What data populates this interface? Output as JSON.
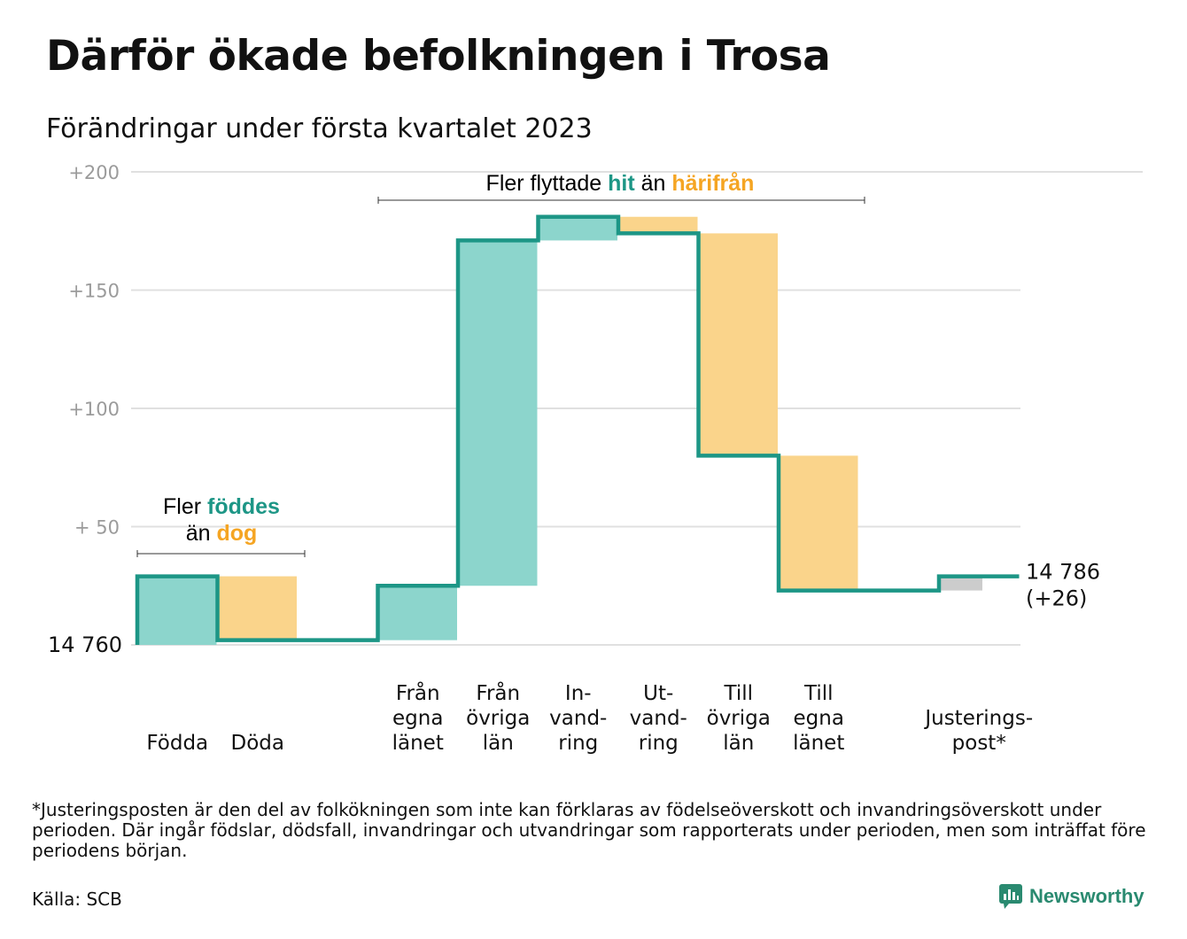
{
  "title": "Därför ökade befolkningen i Trosa",
  "subtitle": "Förändringar under första kvartalet 2023",
  "footnote": "*Justeringsposten är den del av folkökningen som inte kan förklaras av födelseöverskott och invandringsöverskott under perioden. Där ingår födslar, dödsfall, invandringar och utvandringar som rapporterats under perioden, men som inträffat före periodens början.",
  "source": "Källa: SCB",
  "brand": "Newsworthy",
  "colors": {
    "increase": "#8cd5cc",
    "decrease": "#fad48b",
    "adjustment": "#cccccc",
    "line": "#1d9686",
    "highlight_teal": "#1d9686",
    "highlight_orange": "#f5a523",
    "grid": "#e0e0e0",
    "tick": "#9b9b9b"
  },
  "annotations": {
    "births": {
      "line1_prefix": "Fler ",
      "line1_highlight": "föddes",
      "line2_prefix": "än ",
      "line2_highlight": "dog"
    },
    "migration": {
      "prefix": "Fler flyttade ",
      "highlight1": "hit",
      "middle": " än ",
      "highlight2": "härifrån"
    }
  },
  "chart_data": {
    "type": "waterfall",
    "title": "Därför ökade befolkningen i Trosa",
    "subtitle": "Förändringar under första kvartalet 2023",
    "ylim": [
      0,
      200
    ],
    "yticks": [
      {
        "value": 200,
        "label": "+200"
      },
      {
        "value": 150,
        "label": "+150"
      },
      {
        "value": 100,
        "label": "+100"
      },
      {
        "value": 50,
        "label": "+ 50"
      }
    ],
    "grid": true,
    "start": {
      "value": 0,
      "label": "14 760"
    },
    "end": {
      "value": 26,
      "label_line1": "14 786",
      "label_line2": "(+26)"
    },
    "steps": [
      {
        "label": [
          "Födda"
        ],
        "change": 29,
        "kind": "increase"
      },
      {
        "label": [
          "Döda"
        ],
        "change": -27,
        "kind": "decrease"
      },
      {
        "label": [],
        "change": 0,
        "kind": "gap"
      },
      {
        "label": [
          "Från",
          "egna",
          "länet"
        ],
        "change": 23,
        "kind": "increase"
      },
      {
        "label": [
          "Från",
          "övriga",
          "län"
        ],
        "change": 146,
        "kind": "increase"
      },
      {
        "label": [
          "In-",
          "vand-",
          "ring"
        ],
        "change": 10,
        "kind": "increase"
      },
      {
        "label": [
          "Ut-",
          "vand-",
          "ring"
        ],
        "change": -7,
        "kind": "decrease"
      },
      {
        "label": [
          "Till",
          "övriga",
          "län"
        ],
        "change": -94,
        "kind": "decrease"
      },
      {
        "label": [
          "Till",
          "egna",
          "länet"
        ],
        "change": -57,
        "kind": "decrease"
      },
      {
        "label": [],
        "change": 0,
        "kind": "gap"
      },
      {
        "label": [
          "Justerings-",
          "post*"
        ],
        "change": 6,
        "kind": "adjustment"
      }
    ]
  }
}
